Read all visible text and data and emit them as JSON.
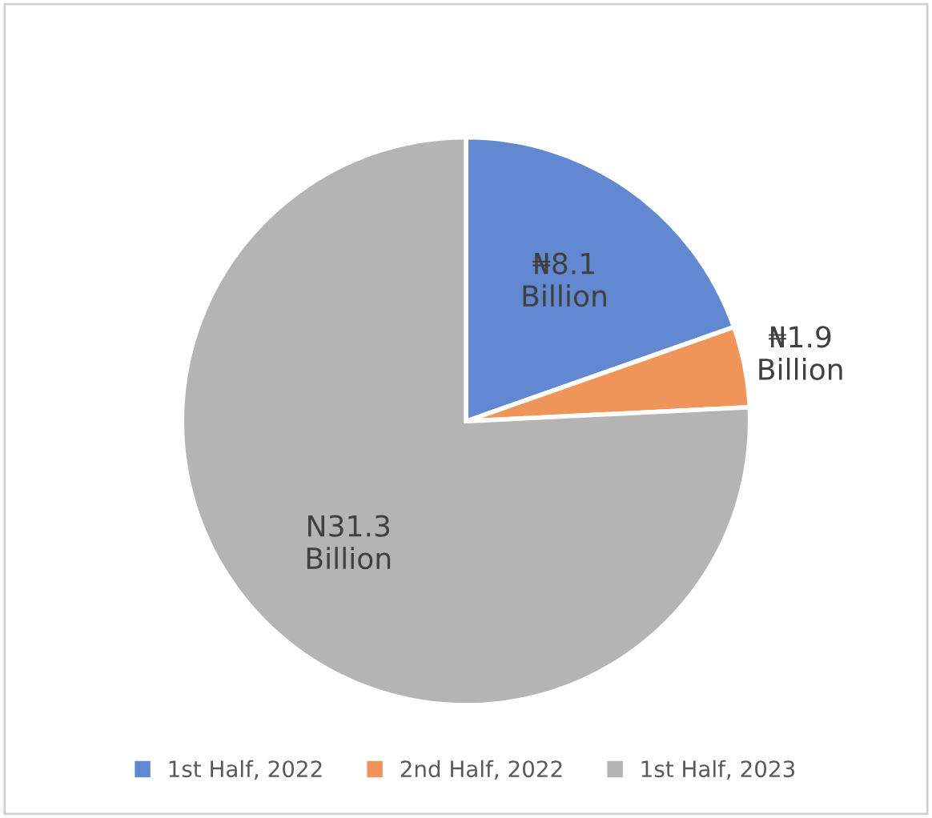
{
  "chart_data": {
    "type": "pie",
    "categories": [
      "1st Half, 2022",
      "2nd Half, 2022",
      "1st Half, 2023"
    ],
    "values": [
      8.1,
      1.9,
      31.3
    ],
    "colors": [
      "#6388d2",
      "#f0955a",
      "#b4b4b4"
    ],
    "value_labels": [
      "₦8.1\nBillion",
      "₦1.9\nBillion",
      "N31.3\nBillion"
    ],
    "legend": "bottom"
  }
}
